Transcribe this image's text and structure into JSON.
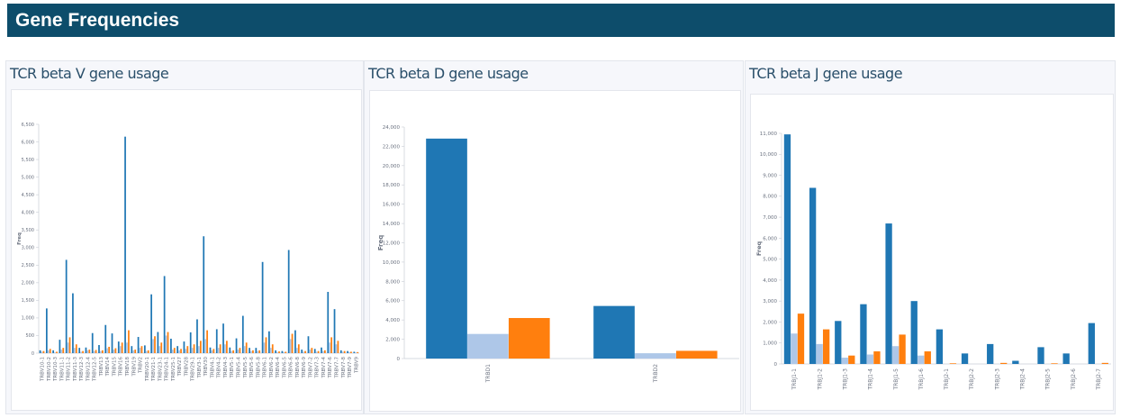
{
  "page": {
    "title": "Gene Frequencies"
  },
  "colors": {
    "title_bg": "#0d4d6b",
    "series_dark": "#1f77b4",
    "series_light": "#aec7e8",
    "series_orange": "#ff7f0e"
  },
  "panels": [
    {
      "title": "TCR beta V gene usage"
    },
    {
      "title": "TCR beta D gene usage"
    },
    {
      "title": "TCR beta J gene usage"
    }
  ],
  "chart_data": [
    {
      "type": "bar",
      "title": "TCR beta V gene usage",
      "ylabel": "Freq",
      "ylim": [
        0,
        6500
      ],
      "yticks": [
        0,
        500,
        1000,
        1500,
        2000,
        2500,
        3000,
        3500,
        4000,
        4500,
        5000,
        5500,
        6000,
        6500
      ],
      "categories": [
        "TRBV10-1",
        "TRBV10-2",
        "TRBV10-3",
        "TRBV11-1",
        "TRBV11-2",
        "TRBV11-3",
        "TRBV12-3",
        "TRBV12-4",
        "TRBV12-5",
        "TRBV13",
        "TRBV14",
        "TRBV15",
        "TRBV16",
        "TRBV18",
        "TRBV19",
        "TRBV2",
        "TRBV20-1",
        "TRBV21-1",
        "TRBV23-1",
        "TRBV24-1",
        "TRBV25-1",
        "TRBV27",
        "TRBV28",
        "TRBV29-1",
        "TRBV3-1",
        "TRBV30",
        "TRBV4-1",
        "TRBV4-2",
        "TRBV4-3",
        "TRBV5-1",
        "TRBV5-4",
        "TRBV5-5",
        "TRBV5-6",
        "TRBV5-8",
        "TRBV6-1",
        "TRBV6-2",
        "TRBV6-4",
        "TRBV6-5",
        "TRBV6-6",
        "TRBV6-8",
        "TRBV6-9",
        "TRBV7-2",
        "TRBV7-3",
        "TRBV7-4",
        "TRBV7-6",
        "TRBV7-7",
        "TRBV7-8",
        "TRBV7-9",
        "TRBV9"
      ],
      "series": [
        {
          "values": [
            80,
            1270,
            80,
            380,
            2650,
            1700,
            150,
            160,
            570,
            230,
            800,
            560,
            330,
            6150,
            200,
            460,
            220,
            1670,
            600,
            2190,
            410,
            200,
            330,
            590,
            960,
            3320,
            160,
            680,
            840,
            160,
            420,
            1060,
            150,
            150,
            2590,
            620,
            80,
            60,
            2930,
            650,
            100,
            480,
            120,
            160,
            1740,
            1250,
            80,
            60,
            40
          ]
        },
        {
          "values": [
            40,
            80,
            20,
            100,
            300,
            150,
            40,
            80,
            60,
            60,
            140,
            100,
            200,
            300,
            80,
            150,
            60,
            400,
            200,
            500,
            100,
            80,
            120,
            150,
            200,
            400,
            80,
            150,
            250,
            60,
            100,
            200,
            60,
            60,
            300,
            150,
            30,
            30,
            400,
            150,
            40,
            100,
            40,
            60,
            300,
            250,
            40,
            30,
            20
          ]
        },
        {
          "values": [
            60,
            120,
            40,
            150,
            450,
            250,
            60,
            100,
            90,
            80,
            180,
            140,
            300,
            650,
            100,
            200,
            80,
            480,
            300,
            600,
            150,
            120,
            200,
            250,
            350,
            650,
            120,
            250,
            350,
            80,
            150,
            300,
            80,
            80,
            450,
            250,
            50,
            40,
            550,
            250,
            60,
            150,
            60,
            80,
            450,
            350,
            60,
            40,
            30
          ]
        }
      ]
    },
    {
      "type": "bar",
      "title": "TCR beta D gene usage",
      "ylabel": "Freq",
      "ylim": [
        0,
        24000
      ],
      "yticks": [
        0,
        2000,
        4000,
        6000,
        8000,
        10000,
        12000,
        14000,
        16000,
        18000,
        20000,
        22000,
        24000
      ],
      "categories": [
        "TRBD1",
        "TRBD2"
      ],
      "series": [
        {
          "values": [
            22800,
            5450
          ]
        },
        {
          "values": [
            2550,
            550
          ]
        },
        {
          "values": [
            4200,
            800
          ]
        }
      ]
    },
    {
      "type": "bar",
      "title": "TCR beta J gene usage",
      "ylabel": "Freq",
      "ylim": [
        0,
        11000
      ],
      "yticks": [
        0,
        1000,
        2000,
        3000,
        4000,
        5000,
        6000,
        7000,
        8000,
        9000,
        10000,
        11000
      ],
      "categories": [
        "TRBJ1-1",
        "TRBJ1-2",
        "TRBJ1-3",
        "TRBJ1-4",
        "TRBJ1-5",
        "TRBJ1-6",
        "TRBJ2-1",
        "TRBJ2-2",
        "TRBJ2-3",
        "TRBJ2-4",
        "TRBJ2-5",
        "TRBJ2-6",
        "TRBJ2-7"
      ],
      "series": [
        {
          "values": [
            10950,
            8400,
            2050,
            2850,
            6700,
            3000,
            1650,
            500,
            950,
            150,
            800,
            500,
            1950
          ]
        },
        {
          "values": [
            1450,
            950,
            300,
            450,
            850,
            400,
            0,
            0,
            0,
            0,
            0,
            0,
            0
          ]
        },
        {
          "values": [
            2400,
            1650,
            400,
            600,
            1400,
            600,
            30,
            0,
            50,
            0,
            30,
            0,
            50
          ]
        }
      ]
    }
  ]
}
